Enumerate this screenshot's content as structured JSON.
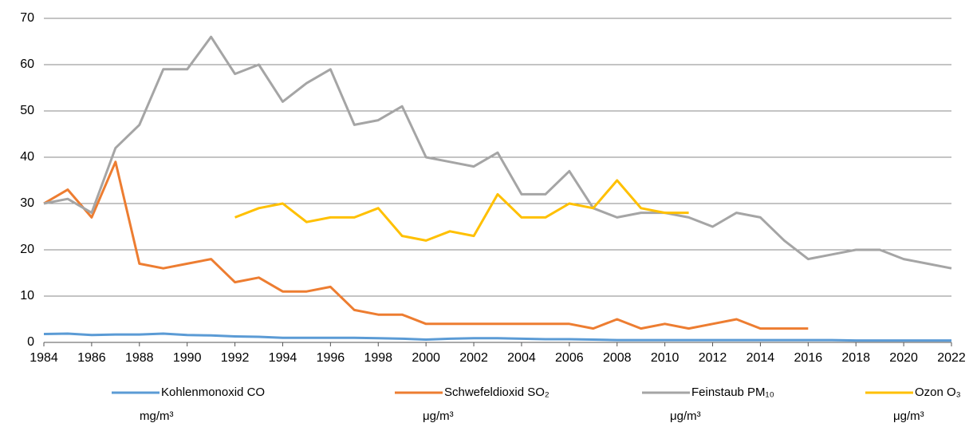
{
  "chart_data": {
    "type": "line",
    "x": [
      1984,
      1985,
      1986,
      1987,
      1988,
      1989,
      1990,
      1991,
      1992,
      1993,
      1994,
      1995,
      1996,
      1997,
      1998,
      1999,
      2000,
      2001,
      2002,
      2003,
      2004,
      2005,
      2006,
      2007,
      2008,
      2009,
      2010,
      2011,
      2012,
      2013,
      2014,
      2015,
      2016,
      2017,
      2018,
      2019,
      2020,
      2021,
      2022
    ],
    "xlim": [
      1984,
      2022
    ],
    "xticks": [
      1984,
      1986,
      1988,
      1990,
      1992,
      1994,
      1996,
      1998,
      2000,
      2002,
      2004,
      2006,
      2008,
      2010,
      2012,
      2014,
      2016,
      2018,
      2020,
      2022
    ],
    "ylim": [
      0,
      70
    ],
    "yticks": [
      0,
      10,
      20,
      30,
      40,
      50,
      60,
      70
    ],
    "grid": true,
    "legend": "bottom",
    "series": [
      {
        "name": "Kohlenmonoxid CO",
        "unit": "mg/m³",
        "color": "#5b9bd5",
        "values": [
          1.8,
          1.9,
          1.6,
          1.7,
          1.7,
          1.9,
          1.6,
          1.5,
          1.3,
          1.2,
          1.0,
          1.0,
          1.0,
          1.0,
          0.9,
          0.8,
          0.6,
          0.8,
          0.9,
          0.9,
          0.8,
          0.7,
          0.7,
          0.6,
          0.5,
          0.5,
          0.5,
          0.5,
          0.5,
          0.5,
          0.5,
          0.5,
          0.5,
          0.5,
          0.4,
          0.4,
          0.4,
          0.4,
          0.4
        ]
      },
      {
        "name": "Schwefeldioxid SO₂",
        "unit": "μg/m³",
        "color": "#ed7d31",
        "values": [
          30,
          33,
          27,
          39,
          17,
          16,
          17,
          18,
          13,
          14,
          11,
          11,
          12,
          7,
          6,
          6,
          4,
          4,
          4,
          4,
          4,
          4,
          4,
          3,
          5,
          3,
          4,
          3,
          4,
          5,
          3,
          3,
          3,
          null,
          null,
          null,
          null,
          null,
          null
        ]
      },
      {
        "name": "Feinstaub PM₁₀",
        "unit": "μg/m³",
        "color": "#a5a5a5",
        "values": [
          30,
          31,
          28,
          42,
          47,
          59,
          59,
          66,
          58,
          60,
          52,
          56,
          59,
          47,
          48,
          51,
          40,
          39,
          38,
          41,
          32,
          32,
          37,
          29,
          27,
          28,
          28,
          27,
          25,
          28,
          27,
          22,
          18,
          19,
          20,
          20,
          18,
          17,
          16
        ]
      },
      {
        "name": "Ozon O₃",
        "unit": "μg/m³",
        "color": "#ffc000",
        "values": [
          null,
          null,
          null,
          null,
          null,
          null,
          null,
          null,
          27,
          29,
          30,
          26,
          27,
          27,
          29,
          23,
          22,
          24,
          23,
          32,
          27,
          27,
          30,
          29,
          35,
          29,
          28,
          28,
          null,
          null,
          null,
          null,
          null,
          null,
          null,
          null,
          null,
          null,
          null
        ]
      }
    ]
  }
}
